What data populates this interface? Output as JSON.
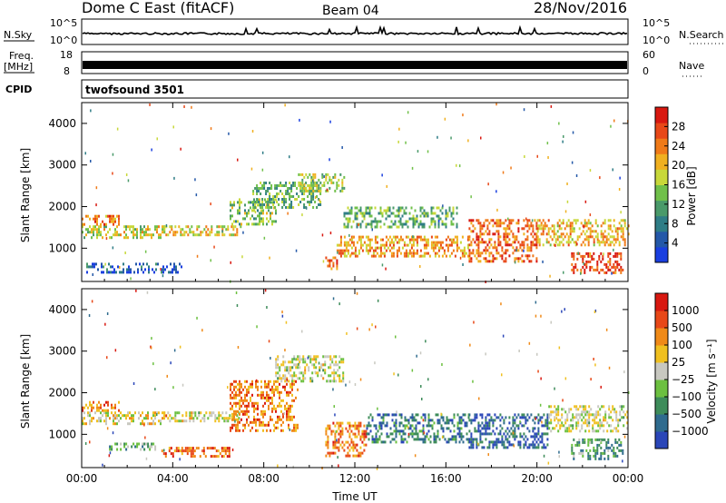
{
  "header": {
    "station": "Dome C East (fitACF)",
    "beam": "Beam 04",
    "date": "28/Nov/2016"
  },
  "top_panels": {
    "nsky_label": "N.Sky",
    "nsky_ticks": [
      "10^5",
      "10^0"
    ],
    "nsearch_label": "N.Search",
    "nsearch_ticks": [
      "10^5",
      "10^0"
    ],
    "freq_label": "Freq.",
    "freq_unit": "[MHz]",
    "freq_ticks": [
      "18",
      "8"
    ],
    "nave_label": "Nave",
    "nave_ticks": [
      "60",
      "0"
    ],
    "cpid_label": "CPID",
    "cpid_value": "twofsound 3501"
  },
  "chart_data": [
    {
      "type": "heatmap",
      "name": "power",
      "ylabel": "Slant Range [km]",
      "ylim": [
        200,
        4500
      ],
      "yticks": [
        1000,
        2000,
        3000,
        4000
      ],
      "xlim": [
        0,
        24
      ],
      "xticks": [
        0,
        4,
        8,
        12,
        16,
        20,
        24
      ],
      "colorbar": {
        "label": "Power [dB]",
        "ticks": [
          "4",
          "8",
          "12",
          "16",
          "20",
          "24",
          "28"
        ],
        "colors": [
          "#1a3fe0",
          "#2458a8",
          "#2f7d86",
          "#4a9a6a",
          "#70c04a",
          "#c8d83a",
          "#f0b020",
          "#f07a18",
          "#e84818",
          "#d81810"
        ]
      },
      "echo_regions": [
        {
          "t0": 0.0,
          "t1": 3.6,
          "r0": 1250,
          "r1": 1550,
          "level": 0.55
        },
        {
          "t0": 0.0,
          "t1": 1.6,
          "r0": 1550,
          "r1": 1800,
          "level": 0.75
        },
        {
          "t0": 0.2,
          "t1": 4.5,
          "r0": 420,
          "r1": 650,
          "level": 0.15
        },
        {
          "t0": 3.6,
          "t1": 7.0,
          "r0": 1300,
          "r1": 1550,
          "level": 0.6
        },
        {
          "t0": 6.5,
          "t1": 8.5,
          "r0": 1600,
          "r1": 2200,
          "level": 0.45
        },
        {
          "t0": 7.5,
          "t1": 10.5,
          "r0": 2000,
          "r1": 2600,
          "level": 0.4
        },
        {
          "t0": 9.5,
          "t1": 11.5,
          "r0": 2400,
          "r1": 2800,
          "level": 0.5
        },
        {
          "t0": 10.7,
          "t1": 11.2,
          "r0": 500,
          "r1": 800,
          "level": 0.8
        },
        {
          "t0": 11.2,
          "t1": 17.0,
          "r0": 800,
          "r1": 1300,
          "level": 0.7
        },
        {
          "t0": 11.5,
          "t1": 16.5,
          "r0": 1500,
          "r1": 2000,
          "level": 0.4
        },
        {
          "t0": 17.0,
          "t1": 20.0,
          "r0": 700,
          "r1": 1700,
          "level": 0.8
        },
        {
          "t0": 20.0,
          "t1": 24.0,
          "r0": 1100,
          "r1": 1700,
          "level": 0.65
        },
        {
          "t0": 21.5,
          "t1": 23.8,
          "r0": 400,
          "r1": 900,
          "level": 0.85
        }
      ]
    },
    {
      "type": "heatmap",
      "name": "velocity",
      "ylabel": "Slant Range [km]",
      "xlabel": "Time UT",
      "ylim": [
        200,
        4500
      ],
      "yticks": [
        1000,
        2000,
        3000,
        4000
      ],
      "xlim": [
        0,
        24
      ],
      "xticks": [
        0,
        4,
        8,
        12,
        16,
        20,
        24
      ],
      "xticklabels": [
        "00:00",
        "04:00",
        "08:00",
        "12:00",
        "16:00",
        "20:00",
        "00:00"
      ],
      "colorbar": {
        "label": "Velocity [m s⁻¹]",
        "ticks": [
          "1000",
          "500",
          "100",
          "25",
          "−25",
          "−100",
          "−500",
          "−1000"
        ],
        "colors": [
          "#2a46b8",
          "#2f6b8e",
          "#3e8c5a",
          "#6cc040",
          "#c8c8c0",
          "#f0c020",
          "#f08a18",
          "#e84818",
          "#d81810"
        ]
      },
      "echo_regions": [
        {
          "t0": 0.0,
          "t1": 3.6,
          "r0": 1250,
          "r1": 1550,
          "level": 0.55
        },
        {
          "t0": 0.0,
          "t1": 1.6,
          "r0": 1550,
          "r1": 1800,
          "level": 0.75
        },
        {
          "t0": 1.2,
          "t1": 3.2,
          "r0": 650,
          "r1": 800,
          "level": 0.35
        },
        {
          "t0": 3.5,
          "t1": 6.5,
          "r0": 500,
          "r1": 700,
          "level": 0.8
        },
        {
          "t0": 3.6,
          "t1": 7.0,
          "r0": 1300,
          "r1": 1550,
          "level": 0.5
        },
        {
          "t0": 6.5,
          "t1": 9.5,
          "r0": 1100,
          "r1": 2300,
          "level": 0.75
        },
        {
          "t0": 8.5,
          "t1": 11.5,
          "r0": 2300,
          "r1": 2900,
          "level": 0.5
        },
        {
          "t0": 10.7,
          "t1": 12.5,
          "r0": 500,
          "r1": 1300,
          "level": 0.75
        },
        {
          "t0": 12.5,
          "t1": 17.0,
          "r0": 800,
          "r1": 1500,
          "level": 0.2
        },
        {
          "t0": 17.0,
          "t1": 20.5,
          "r0": 700,
          "r1": 1500,
          "level": 0.15
        },
        {
          "t0": 20.5,
          "t1": 24.0,
          "r0": 1100,
          "r1": 1700,
          "level": 0.5
        },
        {
          "t0": 21.5,
          "t1": 23.8,
          "r0": 400,
          "r1": 900,
          "level": 0.3
        }
      ]
    }
  ]
}
